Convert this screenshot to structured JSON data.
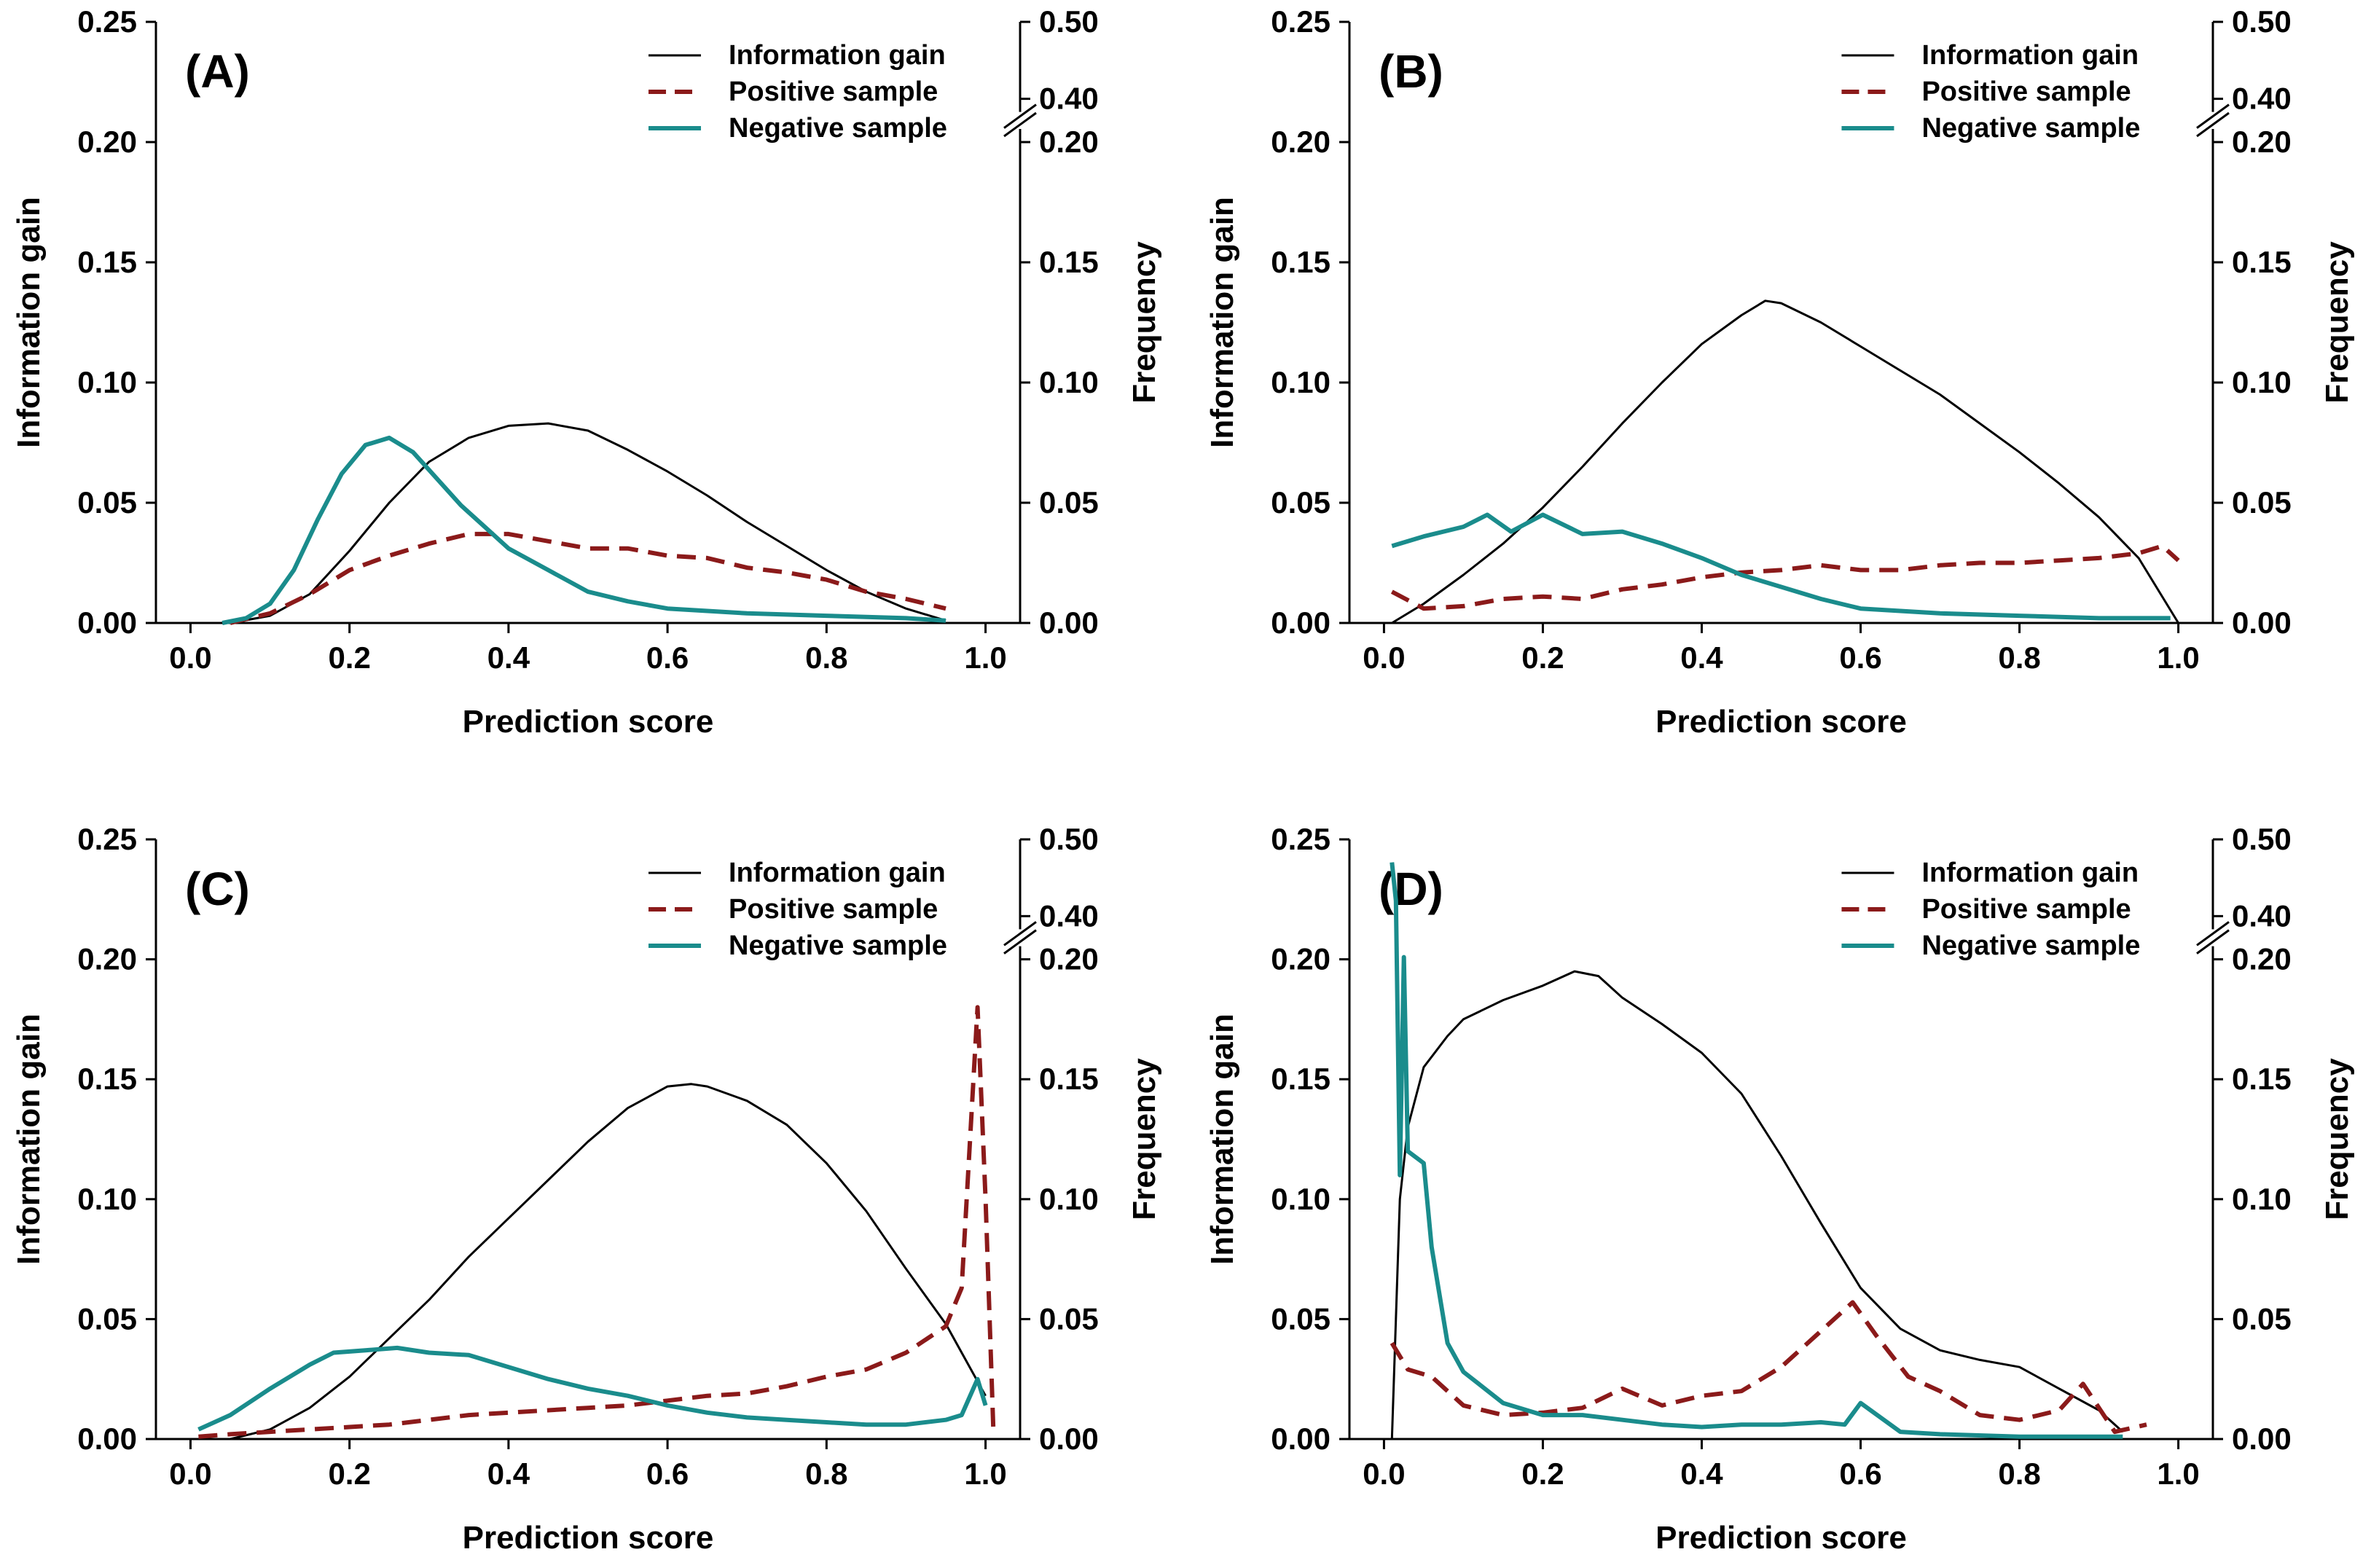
{
  "colors": {
    "information_gain": "#000000",
    "positive_sample": "#8b1a1a",
    "negative_sample": "#1a8c8c"
  },
  "chart_data": [
    {
      "type": "line",
      "panel": "(A)",
      "xlabel": "Prediction score",
      "ylabel": "Information gain",
      "y2label": "Frequency",
      "xlim": [
        0,
        1
      ],
      "ylim": [
        0,
        0.25
      ],
      "y2_break": [
        0.2,
        0.4
      ],
      "xticks": [
        "0.0",
        "0.2",
        "0.4",
        "0.6",
        "0.8",
        "1.0"
      ],
      "yticks": [
        "0.00",
        "0.05",
        "0.10",
        "0.15",
        "0.20",
        "0.25"
      ],
      "y2ticks": [
        "0.00",
        "0.05",
        "0.10",
        "0.15",
        "0.20",
        "0.40",
        "0.50"
      ],
      "legend": [
        "Information gain",
        "Positive sample",
        "Negative sample"
      ],
      "series": [
        {
          "name": "Information gain",
          "axis": "left",
          "style": "solid",
          "x": [
            0.05,
            0.1,
            0.15,
            0.2,
            0.25,
            0.3,
            0.35,
            0.4,
            0.45,
            0.5,
            0.55,
            0.6,
            0.65,
            0.7,
            0.75,
            0.8,
            0.85,
            0.9,
            0.95
          ],
          "y": [
            0,
            0.003,
            0.012,
            0.03,
            0.05,
            0.067,
            0.077,
            0.082,
            0.083,
            0.08,
            0.072,
            0.063,
            0.053,
            0.042,
            0.032,
            0.022,
            0.013,
            0.006,
            0.001
          ]
        },
        {
          "name": "Positive sample",
          "axis": "right",
          "style": "dashed",
          "x": [
            0.05,
            0.1,
            0.15,
            0.2,
            0.25,
            0.3,
            0.35,
            0.4,
            0.45,
            0.5,
            0.55,
            0.6,
            0.65,
            0.7,
            0.75,
            0.8,
            0.85,
            0.9,
            0.95
          ],
          "y": [
            0,
            0.004,
            0.012,
            0.022,
            0.028,
            0.033,
            0.037,
            0.037,
            0.034,
            0.031,
            0.031,
            0.028,
            0.027,
            0.023,
            0.021,
            0.018,
            0.013,
            0.01,
            0.006
          ]
        },
        {
          "name": "Negative sample",
          "axis": "right",
          "style": "solid",
          "x": [
            0.04,
            0.07,
            0.1,
            0.13,
            0.16,
            0.19,
            0.22,
            0.25,
            0.28,
            0.31,
            0.34,
            0.37,
            0.4,
            0.45,
            0.5,
            0.55,
            0.6,
            0.7,
            0.8,
            0.9,
            0.95
          ],
          "y": [
            0,
            0.002,
            0.008,
            0.022,
            0.043,
            0.062,
            0.074,
            0.077,
            0.071,
            0.06,
            0.049,
            0.04,
            0.031,
            0.022,
            0.013,
            0.009,
            0.006,
            0.004,
            0.003,
            0.002,
            0.001
          ]
        }
      ]
    },
    {
      "type": "line",
      "panel": "(B)",
      "xlabel": "Prediction score",
      "ylabel": "Information gain",
      "y2label": "Frequency",
      "xlim": [
        0,
        1
      ],
      "ylim": [
        0,
        0.25
      ],
      "y2_break": [
        0.2,
        0.4
      ],
      "xticks": [
        "0.0",
        "0.2",
        "0.4",
        "0.6",
        "0.8",
        "1.0"
      ],
      "yticks": [
        "0.00",
        "0.05",
        "0.10",
        "0.15",
        "0.20",
        "0.25"
      ],
      "y2ticks": [
        "0.00",
        "0.05",
        "0.10",
        "0.15",
        "0.20",
        "0.40",
        "0.50"
      ],
      "legend": [
        "Information gain",
        "Positive sample",
        "Negative sample"
      ],
      "series": [
        {
          "name": "Information gain",
          "axis": "left",
          "style": "solid",
          "x": [
            0.01,
            0.05,
            0.1,
            0.15,
            0.2,
            0.25,
            0.3,
            0.35,
            0.4,
            0.45,
            0.48,
            0.5,
            0.55,
            0.6,
            0.65,
            0.7,
            0.75,
            0.8,
            0.85,
            0.9,
            0.95,
            1.0
          ],
          "y": [
            0,
            0.008,
            0.02,
            0.033,
            0.048,
            0.065,
            0.083,
            0.1,
            0.116,
            0.128,
            0.134,
            0.133,
            0.125,
            0.115,
            0.105,
            0.095,
            0.083,
            0.071,
            0.058,
            0.044,
            0.027,
            0
          ]
        },
        {
          "name": "Positive sample",
          "axis": "right",
          "style": "dashed",
          "x": [
            0.01,
            0.05,
            0.1,
            0.15,
            0.2,
            0.25,
            0.3,
            0.35,
            0.4,
            0.45,
            0.5,
            0.55,
            0.6,
            0.65,
            0.7,
            0.75,
            0.8,
            0.85,
            0.9,
            0.95,
            0.98,
            1.0
          ],
          "y": [
            0.013,
            0.006,
            0.007,
            0.01,
            0.011,
            0.01,
            0.014,
            0.016,
            0.019,
            0.021,
            0.022,
            0.024,
            0.022,
            0.022,
            0.024,
            0.025,
            0.025,
            0.026,
            0.027,
            0.029,
            0.032,
            0.026
          ]
        },
        {
          "name": "Negative sample",
          "axis": "right",
          "style": "solid",
          "x": [
            0.01,
            0.05,
            0.1,
            0.13,
            0.16,
            0.2,
            0.25,
            0.3,
            0.35,
            0.4,
            0.45,
            0.5,
            0.55,
            0.6,
            0.7,
            0.8,
            0.9,
            0.99
          ],
          "y": [
            0.032,
            0.036,
            0.04,
            0.045,
            0.038,
            0.045,
            0.037,
            0.038,
            0.033,
            0.027,
            0.02,
            0.015,
            0.01,
            0.006,
            0.004,
            0.003,
            0.002,
            0.002
          ]
        }
      ]
    },
    {
      "type": "line",
      "panel": "(C)",
      "xlabel": "Prediction score",
      "ylabel": "Information gain",
      "y2label": "Frequency",
      "xlim": [
        0,
        1
      ],
      "ylim": [
        0,
        0.25
      ],
      "y2_break": [
        0.2,
        0.4
      ],
      "xticks": [
        "0.0",
        "0.2",
        "0.4",
        "0.6",
        "0.8",
        "1.0"
      ],
      "yticks": [
        "0.00",
        "0.05",
        "0.10",
        "0.15",
        "0.20",
        "0.25"
      ],
      "y2ticks": [
        "0.00",
        "0.05",
        "0.10",
        "0.15",
        "0.20",
        "0.40",
        "0.50"
      ],
      "legend": [
        "Information gain",
        "Positive sample",
        "Negative sample"
      ],
      "series": [
        {
          "name": "Information gain",
          "axis": "left",
          "style": "solid",
          "x": [
            0.05,
            0.1,
            0.15,
            0.2,
            0.25,
            0.3,
            0.35,
            0.4,
            0.45,
            0.5,
            0.55,
            0.6,
            0.63,
            0.65,
            0.7,
            0.75,
            0.8,
            0.85,
            0.9,
            0.95,
            1.0
          ],
          "y": [
            0,
            0.004,
            0.013,
            0.026,
            0.042,
            0.058,
            0.076,
            0.092,
            0.108,
            0.124,
            0.138,
            0.147,
            0.148,
            0.147,
            0.141,
            0.131,
            0.115,
            0.095,
            0.071,
            0.048,
            0.018
          ]
        },
        {
          "name": "Positive sample",
          "axis": "right",
          "style": "dashed",
          "x": [
            0.01,
            0.05,
            0.1,
            0.15,
            0.2,
            0.25,
            0.3,
            0.35,
            0.4,
            0.45,
            0.5,
            0.55,
            0.6,
            0.65,
            0.7,
            0.75,
            0.8,
            0.85,
            0.9,
            0.95,
            0.97,
            0.99,
            1.0,
            1.01
          ],
          "y": [
            0.001,
            0.002,
            0.003,
            0.004,
            0.005,
            0.006,
            0.008,
            0.01,
            0.011,
            0.012,
            0.013,
            0.014,
            0.016,
            0.018,
            0.019,
            0.022,
            0.026,
            0.029,
            0.036,
            0.047,
            0.063,
            0.18,
            0.1,
            0.002
          ]
        },
        {
          "name": "Negative sample",
          "axis": "right",
          "style": "solid",
          "x": [
            0.01,
            0.05,
            0.1,
            0.15,
            0.18,
            0.22,
            0.26,
            0.3,
            0.35,
            0.4,
            0.45,
            0.5,
            0.55,
            0.6,
            0.65,
            0.7,
            0.75,
            0.8,
            0.85,
            0.9,
            0.95,
            0.97,
            0.99,
            1.0
          ],
          "y": [
            0.004,
            0.01,
            0.021,
            0.031,
            0.036,
            0.037,
            0.038,
            0.036,
            0.035,
            0.03,
            0.025,
            0.021,
            0.018,
            0.014,
            0.011,
            0.009,
            0.008,
            0.007,
            0.006,
            0.006,
            0.008,
            0.01,
            0.025,
            0.014
          ]
        }
      ]
    },
    {
      "type": "line",
      "panel": "(D)",
      "xlabel": "Prediction score",
      "ylabel": "Information gain",
      "y2label": "Frequency",
      "xlim": [
        0,
        1
      ],
      "ylim": [
        0,
        0.25
      ],
      "y2_break": [
        0.2,
        0.4
      ],
      "xticks": [
        "0.0",
        "0.2",
        "0.4",
        "0.6",
        "0.8",
        "1.0"
      ],
      "yticks": [
        "0.00",
        "0.05",
        "0.10",
        "0.15",
        "0.20",
        "0.25"
      ],
      "y2ticks": [
        "0.00",
        "0.05",
        "0.10",
        "0.15",
        "0.20",
        "0.40",
        "0.50"
      ],
      "legend": [
        "Information gain",
        "Positive sample",
        "Negative sample"
      ],
      "series": [
        {
          "name": "Information gain",
          "axis": "left",
          "style": "solid",
          "x": [
            0.01,
            0.02,
            0.03,
            0.05,
            0.08,
            0.1,
            0.15,
            0.2,
            0.24,
            0.27,
            0.3,
            0.35,
            0.4,
            0.45,
            0.5,
            0.55,
            0.6,
            0.65,
            0.7,
            0.75,
            0.8,
            0.85,
            0.9,
            0.93
          ],
          "y": [
            0,
            0.1,
            0.13,
            0.155,
            0.168,
            0.175,
            0.183,
            0.189,
            0.195,
            0.193,
            0.184,
            0.173,
            0.161,
            0.144,
            0.118,
            0.09,
            0.063,
            0.046,
            0.037,
            0.033,
            0.03,
            0.021,
            0.012,
            0.003
          ]
        },
        {
          "name": "Positive sample",
          "axis": "right",
          "style": "dashed",
          "x": [
            0.01,
            0.03,
            0.06,
            0.1,
            0.15,
            0.2,
            0.25,
            0.3,
            0.35,
            0.4,
            0.45,
            0.5,
            0.55,
            0.59,
            0.62,
            0.66,
            0.7,
            0.75,
            0.8,
            0.85,
            0.88,
            0.92,
            0.96
          ],
          "y": [
            0.04,
            0.029,
            0.026,
            0.014,
            0.01,
            0.011,
            0.013,
            0.021,
            0.014,
            0.018,
            0.02,
            0.03,
            0.045,
            0.057,
            0.043,
            0.026,
            0.02,
            0.01,
            0.008,
            0.012,
            0.023,
            0.003,
            0.006
          ]
        },
        {
          "name": "Negative sample",
          "axis": "right",
          "style": "solid",
          "x": [
            0.01,
            0.015,
            0.02,
            0.025,
            0.03,
            0.05,
            0.06,
            0.08,
            0.1,
            0.15,
            0.2,
            0.25,
            0.3,
            0.35,
            0.4,
            0.45,
            0.5,
            0.55,
            0.58,
            0.6,
            0.65,
            0.7,
            0.8,
            0.93
          ],
          "y": [
            0.47,
            0.42,
            0.11,
            0.21,
            0.12,
            0.115,
            0.08,
            0.04,
            0.028,
            0.015,
            0.01,
            0.01,
            0.008,
            0.006,
            0.005,
            0.006,
            0.006,
            0.007,
            0.006,
            0.015,
            0.003,
            0.002,
            0.001,
            0.001
          ]
        }
      ]
    }
  ]
}
